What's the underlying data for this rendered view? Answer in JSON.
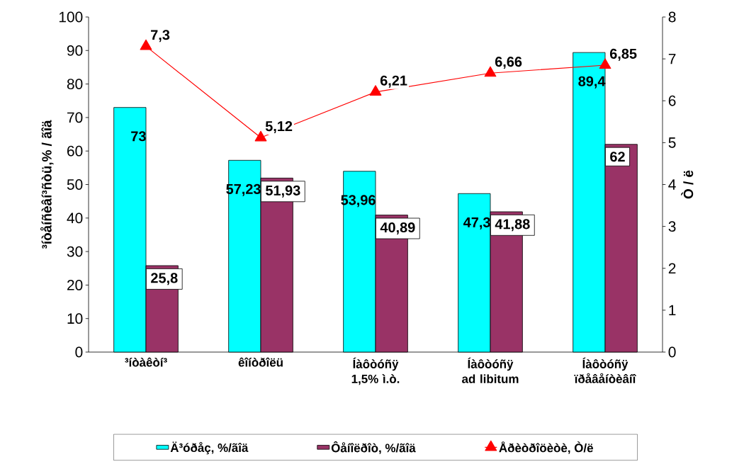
{
  "chart_data": {
    "type": "bar",
    "categories": [
      "³íòàêòí³",
      "êîíòðîëü",
      "Íàôòóñÿ 1,5% ì.ò.",
      "Íàôòóñÿ ad libitum",
      "Íàôòóñÿ ïðåâåíòèâíî"
    ],
    "series": [
      {
        "name": "Ä³óðåç, %/ãîä",
        "color": "#00ffff",
        "values": [
          73,
          57.23,
          53.96,
          47.3,
          89.4
        ],
        "value_labels": [
          "73",
          "57,23",
          "53,96",
          "47,3",
          "89,4"
        ]
      },
      {
        "name": "Ôåíîëðîò, %/ãîä",
        "color": "#993366",
        "values": [
          25.8,
          51.93,
          40.89,
          41.88,
          62
        ],
        "value_labels": [
          "25,8",
          "51,93",
          "40,89",
          "41,88",
          "62"
        ]
      },
      {
        "name": "Åðèòðîöèòè, Ò/ë",
        "type": "line",
        "axis": "y2",
        "color": "#ff0000",
        "marker": "triangle",
        "line_style": "solid",
        "values": [
          7.3,
          5.12,
          6.21,
          6.66,
          6.85
        ],
        "value_labels": [
          "7,3",
          "5,12",
          "6,21",
          "6,66",
          "6,85"
        ]
      }
    ],
    "ylabel": "³íòåíñèâí³ñòü,% / ãîä",
    "y2label": "Ò / ë",
    "ylim": [
      0,
      100
    ],
    "yticks": [
      0,
      10,
      20,
      30,
      40,
      50,
      60,
      70,
      80,
      90,
      100
    ],
    "y2lim": [
      0,
      8
    ],
    "y2ticks": [
      0,
      1,
      2,
      3,
      4,
      5,
      6,
      7,
      8
    ],
    "legend": "bottom",
    "grid": false
  }
}
